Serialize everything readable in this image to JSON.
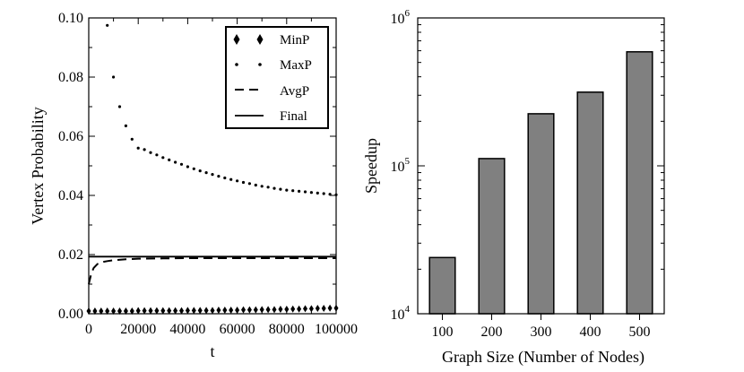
{
  "chart_data": [
    {
      "type": "scatter",
      "xlabel": "t",
      "ylabel": "Vertex Probability",
      "xlim": [
        0,
        100000
      ],
      "ylim": [
        0,
        0.1
      ],
      "xticks": [
        0,
        20000,
        40000,
        60000,
        80000,
        100000
      ],
      "xtick_labels": [
        "0",
        "20000",
        "40000",
        "60000",
        "80000",
        "100000"
      ],
      "yticks": [
        0,
        0.02,
        0.04,
        0.06,
        0.08,
        0.1
      ],
      "ytick_labels": [
        "0.00",
        "0.02",
        "0.04",
        "0.06",
        "0.08",
        "0.10"
      ],
      "legend_position": "top-right",
      "series": [
        {
          "name": "MinP",
          "style": "diamond",
          "x": [
            0,
            2500,
            5000,
            7500,
            10000,
            12500,
            15000,
            17500,
            20000,
            22500,
            25000,
            27500,
            30000,
            32500,
            35000,
            37500,
            40000,
            42500,
            45000,
            47500,
            50000,
            52500,
            55000,
            57500,
            60000,
            62500,
            65000,
            67500,
            70000,
            72500,
            75000,
            77500,
            80000,
            82500,
            85000,
            87500,
            90000,
            92500,
            95000,
            97500,
            100000
          ],
          "y": [
            0.0,
            0.0,
            0.0,
            0.0,
            0.0,
            0.0,
            0.0,
            0.0,
            0.0001,
            0.0001,
            0.0001,
            0.0001,
            0.0001,
            0.0001,
            0.0001,
            0.0001,
            0.0002,
            0.0002,
            0.0002,
            0.0002,
            0.0002,
            0.0003,
            0.0003,
            0.0003,
            0.0003,
            0.0004,
            0.0004,
            0.0004,
            0.0005,
            0.0005,
            0.0005,
            0.0006,
            0.0006,
            0.0007,
            0.0007,
            0.0008,
            0.0008,
            0.0009,
            0.0009,
            0.001,
            0.001
          ]
        },
        {
          "name": "MaxP",
          "style": "dot",
          "x": [
            7500,
            10000,
            12500,
            15000,
            17500,
            20000,
            22500,
            25000,
            27500,
            30000,
            32500,
            35000,
            37500,
            40000,
            42500,
            45000,
            47500,
            50000,
            52500,
            55000,
            57500,
            60000,
            62500,
            65000,
            67500,
            70000,
            72500,
            75000,
            77500,
            80000,
            82500,
            85000,
            87500,
            90000,
            92500,
            95000,
            97500,
            100000
          ],
          "y": [
            0.0975,
            0.08,
            0.07,
            0.0635,
            0.059,
            0.056,
            0.0555,
            0.0545,
            0.0537,
            0.0528,
            0.052,
            0.0512,
            0.0505,
            0.0497,
            0.049,
            0.0483,
            0.0477,
            0.0471,
            0.0465,
            0.0459,
            0.0454,
            0.0449,
            0.0444,
            0.044,
            0.0435,
            0.0431,
            0.0428,
            0.0424,
            0.0421,
            0.0418,
            0.0416,
            0.0414,
            0.0412,
            0.041,
            0.0408,
            0.0406,
            0.0404,
            0.0402
          ]
        },
        {
          "name": "AvgP",
          "style": "dashed",
          "x": [
            0,
            1000,
            2000,
            3500,
            5000,
            7500,
            10000,
            15000,
            20000,
            30000,
            40000,
            60000,
            80000,
            100000
          ],
          "y": [
            0.01,
            0.0135,
            0.0155,
            0.0168,
            0.0174,
            0.0178,
            0.0181,
            0.0184,
            0.0186,
            0.0187,
            0.0188,
            0.0188,
            0.0188,
            0.0188
          ]
        },
        {
          "name": "Final",
          "style": "solid",
          "x": [
            0,
            100000
          ],
          "y": [
            0.0193,
            0.0193
          ]
        }
      ]
    },
    {
      "type": "bar",
      "scale": "log",
      "xlabel": "Graph Size (Number of Nodes)",
      "ylabel": "Speedup",
      "categories": [
        "100",
        "200",
        "300",
        "400",
        "500"
      ],
      "values": [
        24000,
        112000,
        225000,
        315000,
        590000
      ],
      "ylim": [
        10000,
        1000000
      ],
      "yticks": [
        {
          "value": 10000,
          "base": "10",
          "exp": "4"
        },
        {
          "value": 100000,
          "base": "10",
          "exp": "5"
        },
        {
          "value": 1000000,
          "base": "10",
          "exp": "6"
        }
      ],
      "bar_color": "#808080"
    }
  ]
}
